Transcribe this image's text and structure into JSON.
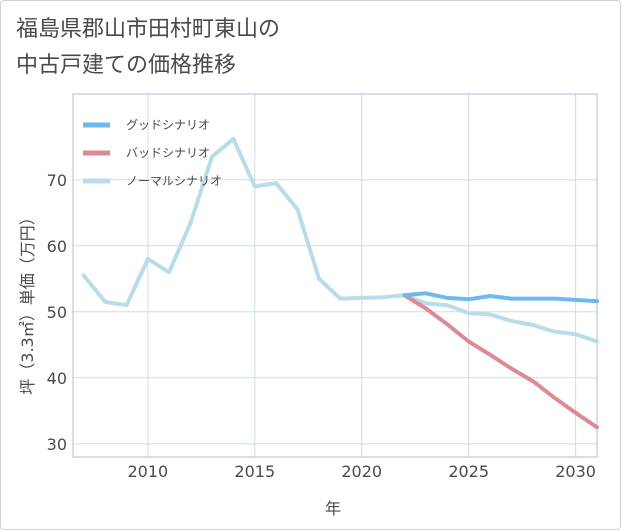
{
  "title": {
    "line1": "福島県郡山市田村町東山の",
    "line2": "中古戸建ての価格推移"
  },
  "colors": {
    "good": "#6fb8ec",
    "bad": "#dc8a94",
    "normal": "#b8dce9",
    "grid": "#cfdde4",
    "text": "#4a4a4a"
  },
  "chart_data": {
    "type": "line",
    "xlabel": "年",
    "ylabel": "坪（3.3㎡）単価（万円）",
    "xlim": [
      2006.5,
      2031
    ],
    "ylim": [
      28,
      83
    ],
    "xticks": [
      2010,
      2015,
      2020,
      2025,
      2030
    ],
    "yticks": [
      30,
      40,
      50,
      60,
      70
    ],
    "grid": true,
    "legend_position": "top-left",
    "series": [
      {
        "name": "グッドシナリオ",
        "color_key": "good",
        "x": [
          2022,
          2023,
          2024,
          2025,
          2026,
          2027,
          2028,
          2029,
          2030,
          2031
        ],
        "y": [
          52.5,
          52.8,
          52.1,
          51.9,
          52.4,
          52.0,
          52.0,
          52.0,
          51.8,
          51.6
        ]
      },
      {
        "name": "バッドシナリオ",
        "color_key": "bad",
        "x": [
          2022,
          2023,
          2024,
          2025,
          2026,
          2027,
          2028,
          2029,
          2030,
          2031
        ],
        "y": [
          52.5,
          50.5,
          48.1,
          45.5,
          43.5,
          41.4,
          39.5,
          37.0,
          34.7,
          32.5
        ]
      },
      {
        "name": "ノーマルシナリオ",
        "color_key": "normal",
        "x": [
          2007,
          2008,
          2009,
          2010,
          2011,
          2012,
          2013,
          2014,
          2015,
          2016,
          2017,
          2018,
          2019,
          2020,
          2021,
          2022,
          2023,
          2024,
          2025,
          2026,
          2027,
          2028,
          2029,
          2030,
          2031
        ],
        "y": [
          55.5,
          51.5,
          51.0,
          58.0,
          56.0,
          63.5,
          73.5,
          76.2,
          69.0,
          69.5,
          65.5,
          55.0,
          52.0,
          52.1,
          52.2,
          52.5,
          51.3,
          51.0,
          49.8,
          49.6,
          48.6,
          48.0,
          47.0,
          46.6,
          45.5
        ]
      }
    ]
  }
}
